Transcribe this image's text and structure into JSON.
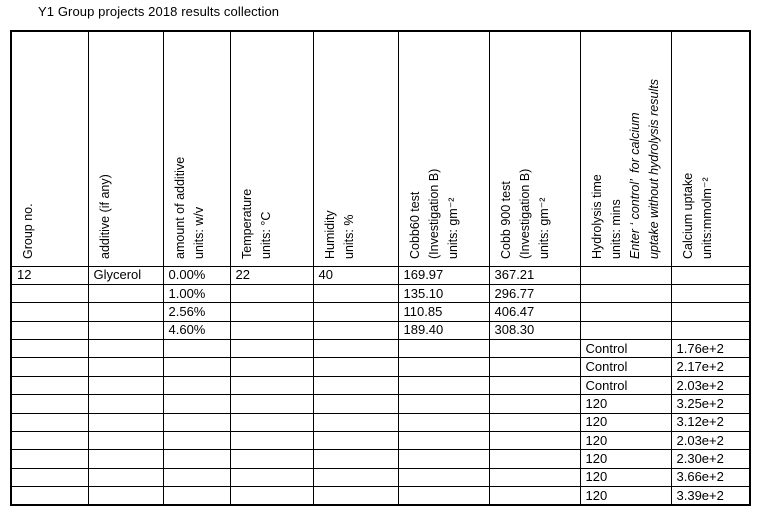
{
  "title": "Y1 Group projects 2018 results collection",
  "table": {
    "headers": [
      {
        "label": "Group no."
      },
      {
        "label": "additive (if any)"
      },
      {
        "label": "amount of additive\nunits: w/v"
      },
      {
        "label": "Temperature\nunits: °C"
      },
      {
        "label": "Humidity\nunits: %"
      },
      {
        "label": "Cobb60 test\n(Investigation B)\nunits: gm⁻²"
      },
      {
        "label": "Cobb 900 test\n(Investigation B)\nunits: gm⁻²"
      },
      {
        "label": "Hydrolysis time\nunits: mins",
        "note": "Enter ‘ control’  for calcium\nuptake without hydrolysis results"
      },
      {
        "label": "Calcium uptake\nunits:mmolm⁻²"
      }
    ],
    "rows": [
      [
        "12",
        "Glycerol",
        "0.00%",
        "22",
        "40",
        "169.97",
        "367.21",
        "",
        ""
      ],
      [
        "",
        "",
        "1.00%",
        "",
        "",
        "135.10",
        "296.77",
        "",
        ""
      ],
      [
        "",
        "",
        "2.56%",
        "",
        "",
        "110.85",
        "406.47",
        "",
        ""
      ],
      [
        "",
        "",
        "4.60%",
        "",
        "",
        "189.40",
        "308.30",
        "",
        ""
      ],
      [
        "",
        "",
        "",
        "",
        "",
        "",
        "",
        "Control",
        "1.76e+2"
      ],
      [
        "",
        "",
        "",
        "",
        "",
        "",
        "",
        "Control",
        "2.17e+2"
      ],
      [
        "",
        "",
        "",
        "",
        "",
        "",
        "",
        "Control",
        "2.03e+2"
      ],
      [
        "",
        "",
        "",
        "",
        "",
        "",
        "",
        "120",
        "3.25e+2"
      ],
      [
        "",
        "",
        "",
        "",
        "",
        "",
        "",
        "120",
        "3.12e+2"
      ],
      [
        "",
        "",
        "",
        "",
        "",
        "",
        "",
        "120",
        "2.03e+2"
      ],
      [
        "",
        "",
        "",
        "",
        "",
        "",
        "",
        "120",
        "2.30e+2"
      ],
      [
        "",
        "",
        "",
        "",
        "",
        "",
        "",
        "120",
        "3.66e+2"
      ],
      [
        "",
        "",
        "",
        "",
        "",
        "",
        "",
        "120",
        "3.39e+2"
      ]
    ]
  }
}
